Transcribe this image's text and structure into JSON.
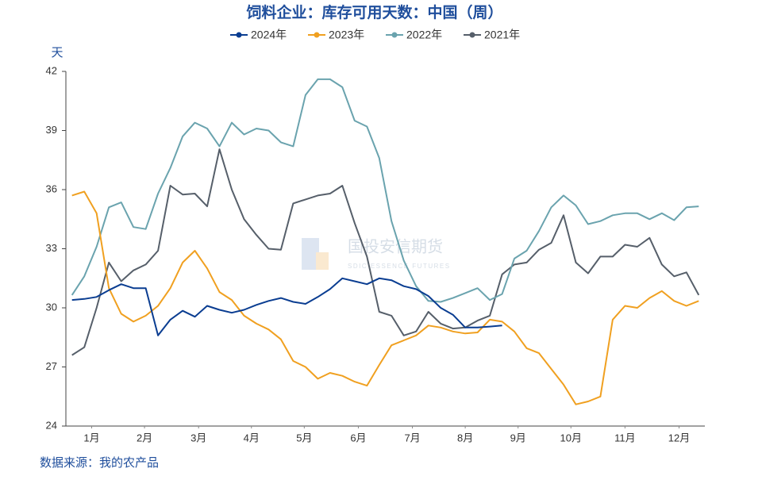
{
  "chart_data": {
    "type": "line",
    "title": "饲料企业：库存可用天数：中国（周）",
    "y_label": "天",
    "source": "数据来源：我的农产品",
    "watermark": "国投安信期货",
    "watermark_sub": "SDIC ESSENCE FUTURES",
    "x": [
      1,
      2,
      3,
      4,
      5,
      6,
      7,
      8,
      9,
      10,
      11,
      12,
      13,
      14,
      15,
      16,
      17,
      18,
      19,
      20,
      21,
      22,
      23,
      24,
      25,
      26,
      27,
      28,
      29,
      30,
      31,
      32,
      33,
      34,
      35,
      36,
      37,
      38,
      39,
      40,
      41,
      42,
      43,
      44,
      45,
      46,
      47,
      48,
      49,
      50,
      51,
      52
    ],
    "xlim": [
      0.5,
      52.5
    ],
    "xticks": [
      {
        "value": 2.6,
        "label": "1月"
      },
      {
        "value": 6.9,
        "label": "2月"
      },
      {
        "value": 11.3,
        "label": "3月"
      },
      {
        "value": 15.6,
        "label": "4月"
      },
      {
        "value": 19.9,
        "label": "5月"
      },
      {
        "value": 24.3,
        "label": "6月"
      },
      {
        "value": 28.7,
        "label": "7月"
      },
      {
        "value": 33,
        "label": "8月"
      },
      {
        "value": 37.3,
        "label": "9月"
      },
      {
        "value": 41.6,
        "label": "10月"
      },
      {
        "value": 46,
        "label": "11月"
      },
      {
        "value": 50.4,
        "label": "12月"
      }
    ],
    "ylim": [
      24,
      42
    ],
    "yticks": [
      24,
      27,
      30,
      33,
      36,
      39,
      42
    ],
    "grid": false,
    "legend": "top",
    "series": [
      {
        "name": "2024年",
        "color": "#0a3d91",
        "values": [
          30.4,
          30.45,
          30.55,
          30.9,
          31.2,
          31.0,
          31.0,
          28.6,
          29.4,
          29.85,
          29.55,
          30.1,
          29.9,
          29.75,
          29.9,
          30.15,
          30.35,
          30.5,
          30.3,
          30.2,
          30.55,
          30.95,
          31.5,
          31.35,
          31.2,
          31.5,
          31.4,
          31.1,
          30.95,
          30.6,
          30.0,
          29.65,
          29.0,
          29.0,
          29.05,
          29.1,
          null,
          null,
          null,
          null,
          null,
          null,
          null,
          null,
          null,
          null,
          null,
          null,
          null,
          null,
          null,
          null
        ]
      },
      {
        "name": "2023年",
        "color": "#f0a020",
        "values": [
          35.7,
          35.9,
          34.8,
          31.0,
          29.7,
          29.3,
          29.6,
          30.1,
          31.0,
          32.3,
          32.9,
          32.0,
          30.8,
          30.4,
          29.6,
          29.2,
          28.9,
          28.4,
          27.3,
          27.0,
          26.4,
          26.7,
          26.55,
          26.25,
          26.05,
          27.1,
          28.1,
          28.35,
          28.6,
          29.1,
          29.0,
          28.8,
          28.7,
          28.75,
          29.4,
          29.3,
          28.8,
          27.95,
          27.7,
          26.9,
          26.1,
          25.1,
          25.25,
          25.5,
          29.4,
          30.1,
          30.0,
          30.5,
          30.85,
          30.35,
          30.1,
          30.35
        ]
      },
      {
        "name": "2022年",
        "color": "#6aa3ae",
        "values": [
          30.65,
          31.6,
          33.1,
          35.1,
          35.35,
          34.1,
          34.0,
          35.8,
          37.1,
          38.7,
          39.4,
          39.1,
          38.2,
          39.4,
          38.8,
          39.1,
          39.0,
          38.4,
          38.2,
          40.8,
          41.6,
          41.6,
          41.2,
          39.5,
          39.2,
          37.6,
          34.4,
          32.4,
          31.1,
          30.35,
          30.3,
          30.5,
          30.75,
          31.0,
          30.4,
          30.7,
          32.5,
          32.9,
          33.9,
          35.1,
          35.7,
          35.2,
          34.25,
          34.4,
          34.7,
          34.8,
          34.8,
          34.5,
          34.8,
          34.45,
          35.1,
          35.15
        ]
      },
      {
        "name": "2021年",
        "color": "#565f6a",
        "values": [
          27.6,
          28.0,
          30.0,
          32.3,
          31.35,
          31.9,
          32.2,
          32.9,
          36.2,
          35.75,
          35.8,
          35.15,
          38.05,
          36.0,
          34.5,
          33.7,
          33.0,
          32.95,
          35.3,
          35.5,
          35.7,
          35.8,
          36.2,
          34.3,
          32.6,
          29.8,
          29.6,
          28.6,
          28.8,
          29.8,
          29.2,
          28.95,
          29.0,
          29.35,
          29.6,
          31.7,
          32.2,
          32.3,
          32.95,
          33.3,
          34.7,
          32.3,
          31.75,
          32.6,
          32.6,
          33.2,
          33.1,
          33.55,
          32.2,
          31.6,
          31.8,
          30.65
        ]
      }
    ]
  }
}
